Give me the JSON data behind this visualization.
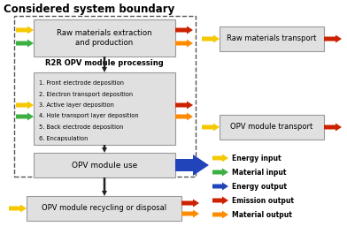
{
  "title": "Considered system boundary",
  "title_fontsize": 8.5,
  "colors": {
    "yellow": "#F5C800",
    "green": "#3CB043",
    "blue": "#2244BB",
    "red": "#CC2200",
    "orange": "#FF8C00",
    "box_bg": "#E0E0E0",
    "box_edge": "#999999",
    "arrow_dark": "#222222"
  },
  "legend_items": [
    {
      "color": "#F5C800",
      "label": "Energy input"
    },
    {
      "color": "#3CB043",
      "label": "Material input"
    },
    {
      "color": "#2244BB",
      "label": "Energy output"
    },
    {
      "color": "#CC2200",
      "label": "Emission output"
    },
    {
      "color": "#FF8C00",
      "label": "Material output"
    }
  ],
  "steps": [
    "1. Front electrode deposition",
    "2. Electron transport deposition",
    "3. Active layer deposition",
    "4. Hole transport layer deposition",
    "5. Back electrode deposition",
    "6. Encapsulation"
  ]
}
